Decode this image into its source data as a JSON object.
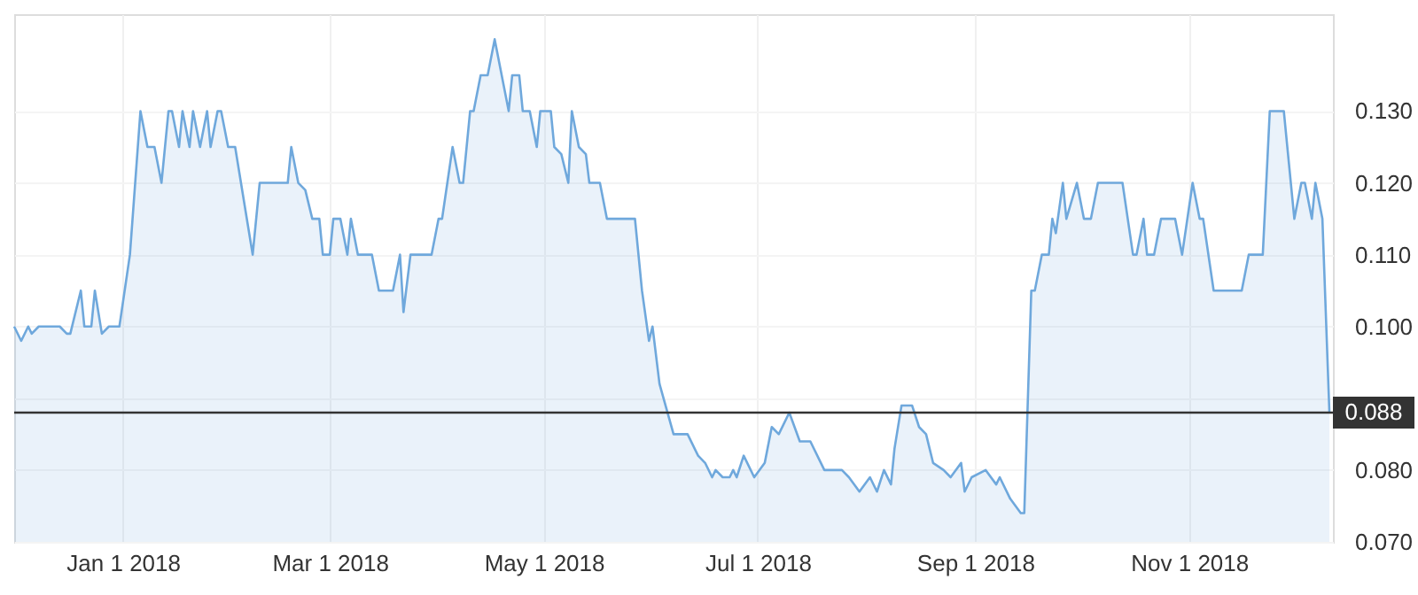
{
  "chart_data": {
    "type": "area",
    "x": [
      "2017-12-01",
      "2017-12-03",
      "2017-12-05",
      "2017-12-06",
      "2017-12-08",
      "2017-12-14",
      "2017-12-16",
      "2017-12-17",
      "2017-12-20",
      "2017-12-21",
      "2017-12-23",
      "2017-12-24",
      "2017-12-26",
      "2017-12-28",
      "2017-12-31",
      "2018-01-03",
      "2018-01-06",
      "2018-01-08",
      "2018-01-10",
      "2018-01-12",
      "2018-01-14",
      "2018-01-15",
      "2018-01-17",
      "2018-01-18",
      "2018-01-20",
      "2018-01-21",
      "2018-01-23",
      "2018-01-25",
      "2018-01-26",
      "2018-01-28",
      "2018-01-29",
      "2018-01-31",
      "2018-02-02",
      "2018-02-07",
      "2018-02-09",
      "2018-02-17",
      "2018-02-18",
      "2018-02-20",
      "2018-02-22",
      "2018-02-24",
      "2018-02-26",
      "2018-02-27",
      "2018-03-01",
      "2018-03-02",
      "2018-03-04",
      "2018-03-06",
      "2018-03-07",
      "2018-03-09",
      "2018-03-13",
      "2018-03-15",
      "2018-03-19",
      "2018-03-21",
      "2018-03-22",
      "2018-03-24",
      "2018-03-30",
      "2018-04-01",
      "2018-04-02",
      "2018-04-05",
      "2018-04-07",
      "2018-04-08",
      "2018-04-10",
      "2018-04-11",
      "2018-04-13",
      "2018-04-15",
      "2018-04-17",
      "2018-04-21",
      "2018-04-22",
      "2018-04-24",
      "2018-04-25",
      "2018-04-27",
      "2018-04-29",
      "2018-04-30",
      "2018-05-03",
      "2018-05-04",
      "2018-05-06",
      "2018-05-08",
      "2018-05-09",
      "2018-05-11",
      "2018-05-13",
      "2018-05-14",
      "2018-05-17",
      "2018-05-19",
      "2018-05-27",
      "2018-05-29",
      "2018-05-31",
      "2018-06-01",
      "2018-06-03",
      "2018-06-07",
      "2018-06-11",
      "2018-06-14",
      "2018-06-16",
      "2018-06-18",
      "2018-06-19",
      "2018-06-21",
      "2018-06-23",
      "2018-06-24",
      "2018-06-25",
      "2018-06-27",
      "2018-06-30",
      "2018-07-03",
      "2018-07-05",
      "2018-07-07",
      "2018-07-10",
      "2018-07-13",
      "2018-07-16",
      "2018-07-20",
      "2018-07-25",
      "2018-07-27",
      "2018-07-30",
      "2018-08-02",
      "2018-08-04",
      "2018-08-06",
      "2018-08-08",
      "2018-08-09",
      "2018-08-11",
      "2018-08-14",
      "2018-08-16",
      "2018-08-18",
      "2018-08-20",
      "2018-08-23",
      "2018-08-25",
      "2018-08-28",
      "2018-08-29",
      "2018-08-31",
      "2018-09-04",
      "2018-09-07",
      "2018-09-08",
      "2018-09-11",
      "2018-09-14",
      "2018-09-15",
      "2018-09-17",
      "2018-09-18",
      "2018-09-20",
      "2018-09-22",
      "2018-09-23",
      "2018-09-24",
      "2018-09-26",
      "2018-09-27",
      "2018-09-30",
      "2018-10-02",
      "2018-10-04",
      "2018-10-06",
      "2018-10-13",
      "2018-10-16",
      "2018-10-17",
      "2018-10-19",
      "2018-10-20",
      "2018-10-22",
      "2018-10-24",
      "2018-10-28",
      "2018-10-30",
      "2018-11-02",
      "2018-11-04",
      "2018-11-05",
      "2018-11-08",
      "2018-11-16",
      "2018-11-18",
      "2018-11-22",
      "2018-11-24",
      "2018-11-28",
      "2018-11-29",
      "2018-12-01",
      "2018-12-03",
      "2018-12-04",
      "2018-12-06",
      "2018-12-07",
      "2018-12-09",
      "2018-12-11"
    ],
    "series": [
      {
        "color": "#6fa8dc",
        "values": [
          0.1,
          0.098,
          0.1,
          0.099,
          0.1,
          0.1,
          0.099,
          0.099,
          0.105,
          0.1,
          0.1,
          0.105,
          0.099,
          0.1,
          0.1,
          0.11,
          0.13,
          0.125,
          0.125,
          0.12,
          0.13,
          0.13,
          0.125,
          0.13,
          0.125,
          0.13,
          0.125,
          0.13,
          0.125,
          0.13,
          0.13,
          0.125,
          0.125,
          0.11,
          0.12,
          0.12,
          0.125,
          0.12,
          0.119,
          0.115,
          0.115,
          0.11,
          0.11,
          0.115,
          0.115,
          0.11,
          0.115,
          0.11,
          0.11,
          0.105,
          0.105,
          0.11,
          0.102,
          0.11,
          0.11,
          0.115,
          0.115,
          0.125,
          0.12,
          0.12,
          0.13,
          0.13,
          0.135,
          0.135,
          0.14,
          0.13,
          0.135,
          0.135,
          0.13,
          0.13,
          0.125,
          0.13,
          0.13,
          0.125,
          0.124,
          0.12,
          0.13,
          0.125,
          0.124,
          0.12,
          0.12,
          0.115,
          0.115,
          0.105,
          0.098,
          0.1,
          0.092,
          0.085,
          0.085,
          0.082,
          0.081,
          0.079,
          0.08,
          0.079,
          0.079,
          0.08,
          0.079,
          0.082,
          0.079,
          0.081,
          0.086,
          0.085,
          0.088,
          0.084,
          0.084,
          0.08,
          0.08,
          0.079,
          0.077,
          0.079,
          0.077,
          0.08,
          0.078,
          0.083,
          0.089,
          0.089,
          0.086,
          0.085,
          0.081,
          0.08,
          0.079,
          0.081,
          0.077,
          0.079,
          0.08,
          0.078,
          0.079,
          0.076,
          0.074,
          0.074,
          0.105,
          0.105,
          0.11,
          0.11,
          0.115,
          0.113,
          0.12,
          0.115,
          0.12,
          0.115,
          0.115,
          0.12,
          0.12,
          0.11,
          0.11,
          0.115,
          0.11,
          0.11,
          0.115,
          0.115,
          0.11,
          0.12,
          0.115,
          0.115,
          0.105,
          0.105,
          0.11,
          0.11,
          0.13,
          0.13,
          0.125,
          0.115,
          0.12,
          0.12,
          0.115,
          0.12,
          0.115,
          0.088
        ]
      }
    ],
    "xlim": [
      "2017-12-01",
      "2018-12-12"
    ],
    "xticks": [
      {
        "value": "2018-01-01",
        "label": "Jan 1 2018"
      },
      {
        "value": "2018-03-01",
        "label": "Mar 1 2018"
      },
      {
        "value": "2018-05-01",
        "label": "May 1 2018"
      },
      {
        "value": "2018-07-01",
        "label": "Jul 1 2018"
      },
      {
        "value": "2018-09-01",
        "label": "Sep 1 2018"
      },
      {
        "value": "2018-11-01",
        "label": "Nov 1 2018"
      }
    ],
    "ylim": [
      0.07,
      0.1435
    ],
    "yticks": [
      {
        "value": 0.07,
        "label": "0.070"
      },
      {
        "value": 0.08,
        "label": "0.080"
      },
      {
        "value": 0.09,
        "label": null
      },
      {
        "value": 0.1,
        "label": "0.100"
      },
      {
        "value": 0.11,
        "label": "0.110"
      },
      {
        "value": 0.12,
        "label": "0.120"
      },
      {
        "value": 0.13,
        "label": "0.130"
      }
    ],
    "ref_lines": [
      {
        "axis": "y",
        "value": 0.088,
        "label": "0.088",
        "color": "#333333"
      }
    ],
    "grid": true,
    "marker": "none"
  }
}
